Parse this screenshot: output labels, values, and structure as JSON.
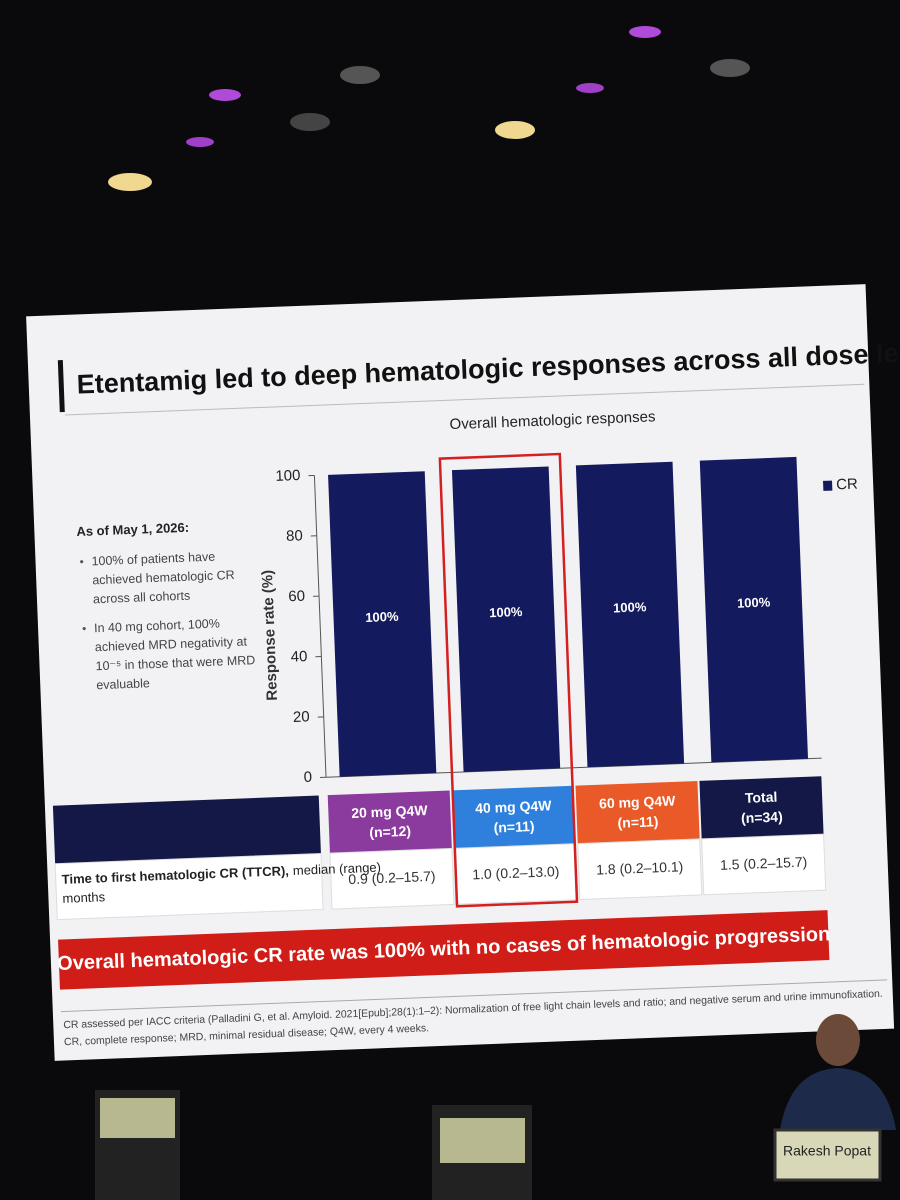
{
  "slide_title": "Etentamig led to deep hematologic responses across all dose levels",
  "notes": {
    "heading": "As of May 1, 2026:",
    "bullets": [
      [
        "100% of patients have",
        "achieved hematologic CR",
        "across all cohorts"
      ],
      [
        "In 40 mg cohort, 100%",
        "achieved MRD negativity at",
        "10⁻⁵ in those that were MRD",
        "evaluable"
      ]
    ]
  },
  "chart_data": {
    "type": "bar",
    "title": "Overall hematologic responses",
    "y_label": "Response rate (%)",
    "categories": [
      "20 mg Q4W",
      "40 mg Q4W",
      "60 mg Q4W",
      "Total"
    ],
    "category_n": [
      "(n=12)",
      "(n=11)",
      "(n=11)",
      "(n=34)"
    ],
    "category_colors": [
      "#8b3a9e",
      "#2f80dc",
      "#ea5a28",
      "#131846"
    ],
    "series": [
      {
        "name": "CR",
        "color": "#141a5e",
        "values": [
          100,
          100,
          100,
          100
        ],
        "value_labels": [
          "100%",
          "100%",
          "100%",
          "100%"
        ]
      }
    ],
    "ylim": [
      0,
      100
    ],
    "yticks": [
      0,
      20,
      40,
      60,
      80,
      100
    ],
    "grid": false,
    "legend": "right"
  },
  "table": {
    "row_label_bold": "Time to first hematologic CR (TTCR),",
    "row_label_rest": "median (range)",
    "row_label_unit": "months",
    "values": [
      "0.9 (0.2–15.7)",
      "1.0 (0.2–13.0)",
      "1.8 (0.2–10.1)",
      "1.5 (0.2–15.7)"
    ]
  },
  "banner": "Overall hematologic CR rate was 100% with no cases of hematologic progression",
  "footnote": [
    "CR assessed per IACC criteria (Palladini G, et al. Amyloid. 2021[Epub];28(1):1–2): Normalization of free light chain levels and ratio; and negative serum and urine immunofixation.",
    "CR, complete response; MRD, minimal residual disease; Q4W, every 4 weeks."
  ],
  "nameplate": "Rakesh Popat"
}
